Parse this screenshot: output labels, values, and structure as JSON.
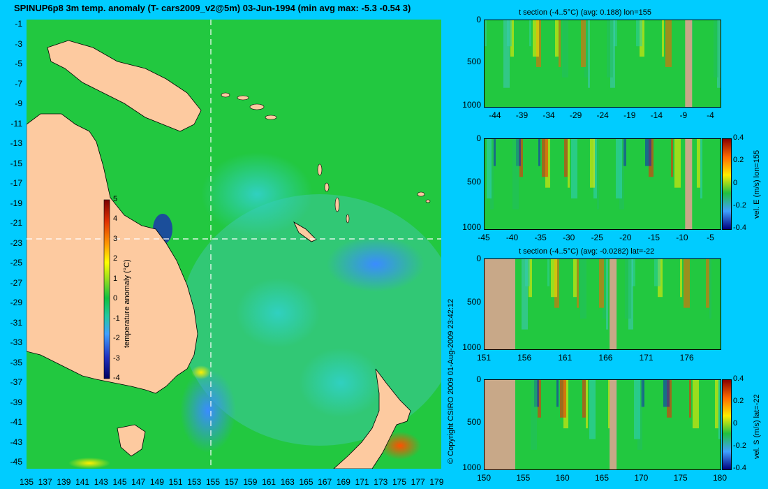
{
  "title": "SPINUP6p8 3m temp. anomaly (T- cars2009_v2@5m) 03-Jun-1994 (min avg max: -5.3 -0.54 3)",
  "copyright": "© Copyright CSIRO 2009   01-Aug-2009 23:42:12",
  "map": {
    "lat_labels": [
      "-1",
      "-3",
      "-5",
      "-7",
      "-9",
      "-11",
      "-13",
      "-15",
      "-17",
      "-19",
      "-21",
      "-23",
      "-25",
      "-27",
      "-29",
      "-31",
      "-33",
      "-35",
      "-37",
      "-39",
      "-41",
      "-43",
      "-45"
    ],
    "lon_labels": [
      "135",
      "137",
      "139",
      "141",
      "143",
      "145",
      "147",
      "149",
      "151",
      "153",
      "155",
      "157",
      "159",
      "161",
      "163",
      "165",
      "167",
      "169",
      "171",
      "173",
      "175",
      "177",
      "179"
    ],
    "colorbar": {
      "label": "temperature anomaly (°C)",
      "ticks": [
        "5",
        "4",
        "3",
        "2",
        "1",
        "0",
        "-1",
        "-2",
        "-3",
        "-4"
      ]
    },
    "colors": {
      "ocean": "#22c840",
      "land": "#fdcaa0",
      "background": "#00ccff"
    }
  },
  "panels": [
    {
      "title": "t section (-4..5°C) (avg: 0.188) lon=155",
      "y_ticks": [
        "0",
        "500",
        "1000"
      ],
      "x_ticks": [
        "-44",
        "-39",
        "-34",
        "-29",
        "-24",
        "-19",
        "-14",
        "-9",
        "-4"
      ]
    },
    {
      "title": "",
      "y_ticks": [
        "0",
        "500",
        "1000"
      ],
      "x_ticks": [
        "-45",
        "-40",
        "-35",
        "-30",
        "-25",
        "-20",
        "-15",
        "-10",
        "-5"
      ],
      "colorbar_label": "vel. E (m/s) lon=155",
      "colorbar_ticks": [
        "0.4",
        "0.2",
        "0",
        "-0.2",
        "-0.4"
      ]
    },
    {
      "title": "t section (-4..5°C) (avg: -0.0282) lat=-22",
      "y_ticks": [
        "0",
        "500",
        "1000"
      ],
      "x_ticks": [
        "151",
        "156",
        "161",
        "166",
        "171",
        "176"
      ]
    },
    {
      "title": "",
      "y_ticks": [
        "0",
        "500",
        "1000"
      ],
      "x_ticks": [
        "150",
        "155",
        "160",
        "165",
        "170",
        "175",
        "180"
      ],
      "colorbar_label": "vel. S (m/s) lat=-22",
      "colorbar_ticks": [
        "0.4",
        "0.2",
        "0",
        "-0.2",
        "-0.4"
      ]
    }
  ]
}
